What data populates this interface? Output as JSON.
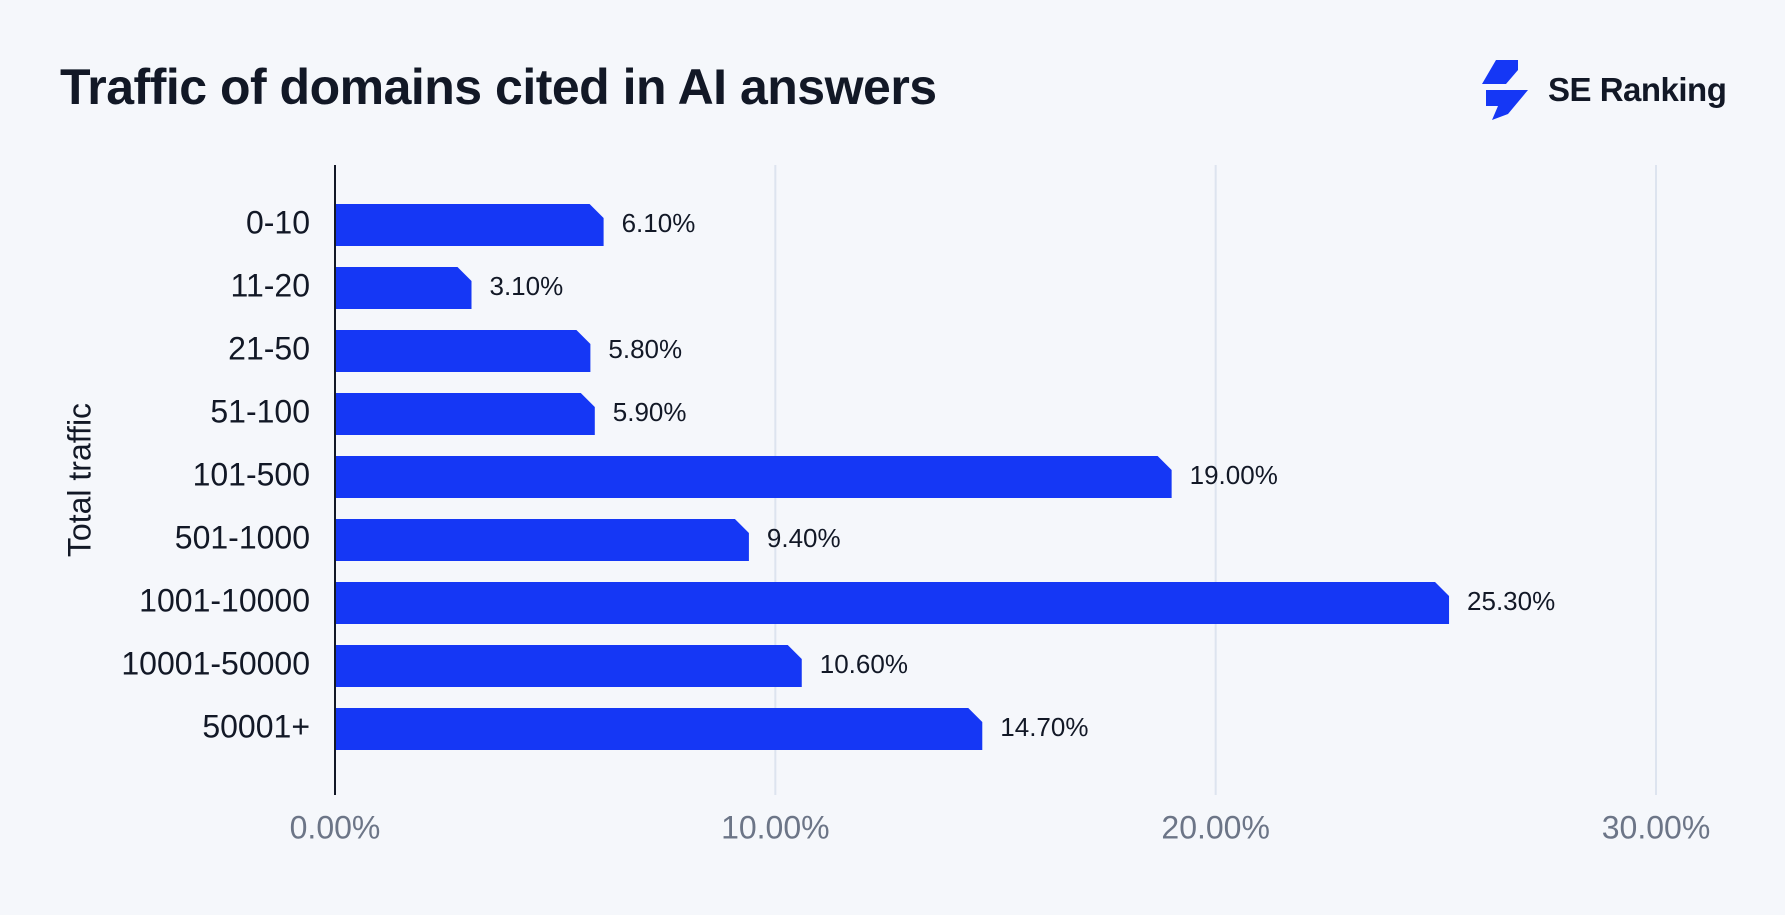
{
  "header": {
    "title": "Traffic of domains cited in AI answers",
    "brand_name": "SE Ranking",
    "brand_logo_icon": "se-ranking-logo-icon"
  },
  "colors": {
    "bar": "#1537f5",
    "grid": "#dde4ef",
    "axis": "#121826",
    "background": "#f5f7fb",
    "tick_text": "#6c7587",
    "text": "#121826"
  },
  "chart_data": {
    "type": "bar",
    "orientation": "horizontal",
    "title": "Traffic of domains cited in AI answers",
    "ylabel": "Total traffic",
    "xlabel": "",
    "categories": [
      "0-10",
      "11-20",
      "21-50",
      "51-100",
      "101-500",
      "501-1000",
      "1001-10000",
      "10001-50000",
      "50001+"
    ],
    "values": [
      6.1,
      3.1,
      5.8,
      5.9,
      19.0,
      9.4,
      25.3,
      10.6,
      14.7
    ],
    "value_labels": [
      "6.10%",
      "3.10%",
      "5.80%",
      "5.90%",
      "19.00%",
      "9.40%",
      "25.30%",
      "10.60%",
      "14.70%"
    ],
    "xlim": [
      0,
      30
    ],
    "xticks": [
      0,
      10,
      20,
      30
    ],
    "xtick_labels": [
      "0.00%",
      "10.00%",
      "20.00%",
      "30.00%"
    ],
    "grid": "vertical",
    "legend": "none"
  }
}
